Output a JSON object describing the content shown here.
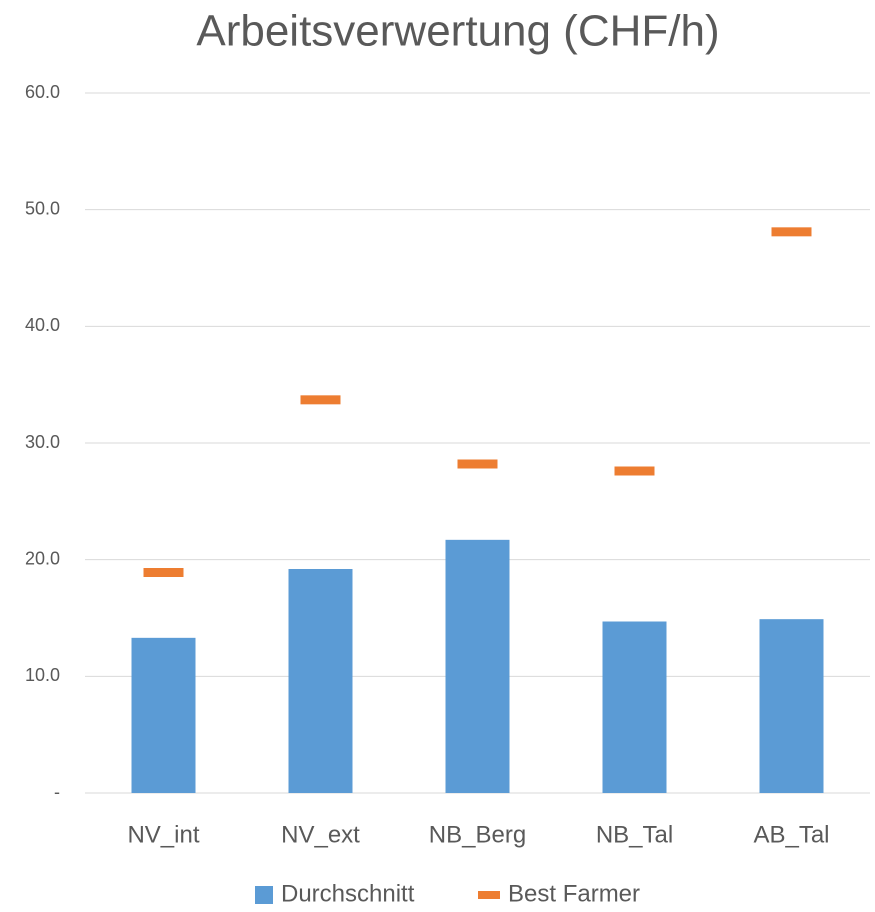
{
  "chart_data": {
    "type": "bar",
    "title": "Arbeitsverwertung (CHF/h)",
    "categories": [
      "NV_int",
      "NV_ext",
      "NB_Berg",
      "NB_Tal",
      "AB_Tal"
    ],
    "series": [
      {
        "name": "Durchschnitt",
        "color": "#5b9bd5",
        "mark": "bar",
        "values": [
          13.3,
          19.2,
          21.7,
          14.7,
          14.9
        ]
      },
      {
        "name": "Best Farmer",
        "color": "#ed7d31",
        "mark": "dash",
        "values": [
          18.9,
          33.7,
          28.2,
          27.6,
          48.1
        ]
      }
    ],
    "ylim": [
      0,
      60
    ],
    "yticks": [
      {
        "value": 0,
        "label": "-"
      },
      {
        "value": 10,
        "label": "10.0"
      },
      {
        "value": 20,
        "label": "20.0"
      },
      {
        "value": 30,
        "label": "30.0"
      },
      {
        "value": 40,
        "label": "40.0"
      },
      {
        "value": 50,
        "label": "50.0"
      },
      {
        "value": 60,
        "label": "60.0"
      }
    ],
    "grid": true,
    "legend": "bottom"
  }
}
